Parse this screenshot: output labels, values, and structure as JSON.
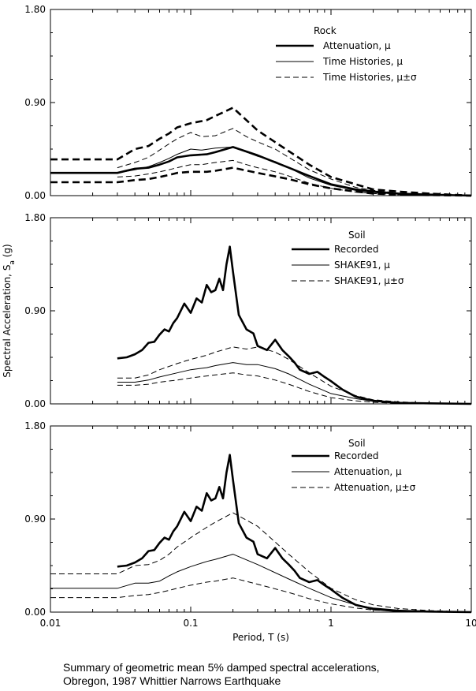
{
  "figure": {
    "ylabel": "Spectral Acceleration, S",
    "ylabel_sub": "a",
    "ylabel_unit": " (g)",
    "xlabel": "Period, T (s)",
    "caption_line1": "Summary of geometric mean 5% damped spectral accelerations,",
    "caption_line2": "Obregon, 1987 Whittier Narrows Earthquake"
  },
  "chart_data": [
    {
      "type": "line",
      "title": "Rock",
      "xscale": "log",
      "xlim": [
        0.01,
        10
      ],
      "ylim": [
        0,
        1.8
      ],
      "yticks": [
        "0.00",
        "0.90",
        "1.80"
      ],
      "xticks": [],
      "legend_position": "top-right",
      "series": [
        {
          "name": "Attenuation, μ",
          "style": "thick",
          "x": [
            0.01,
            0.03,
            0.04,
            0.05,
            0.06,
            0.07,
            0.08,
            0.1,
            0.13,
            0.15,
            0.2,
            0.3,
            0.5,
            0.7,
            1.0,
            1.5,
            2.0,
            3.0,
            5.0,
            10.0
          ],
          "y": [
            0.22,
            0.22,
            0.26,
            0.27,
            0.3,
            0.33,
            0.37,
            0.39,
            0.4,
            0.42,
            0.47,
            0.39,
            0.27,
            0.19,
            0.11,
            0.06,
            0.04,
            0.02,
            0.01,
            0.0
          ]
        },
        {
          "name": "Attenuation, μ±σ (upper)",
          "style": "thickdash",
          "x": [
            0.01,
            0.03,
            0.04,
            0.05,
            0.06,
            0.07,
            0.08,
            0.1,
            0.13,
            0.15,
            0.2,
            0.3,
            0.5,
            0.7,
            1.0,
            1.5,
            2.0,
            3.0,
            5.0,
            10.0
          ],
          "y": [
            0.35,
            0.35,
            0.45,
            0.48,
            0.55,
            0.6,
            0.66,
            0.7,
            0.73,
            0.77,
            0.85,
            0.63,
            0.43,
            0.3,
            0.18,
            0.11,
            0.06,
            0.04,
            0.02,
            0.0
          ]
        },
        {
          "name": "Attenuation, μ±σ (lower)",
          "style": "thickdash",
          "x": [
            0.01,
            0.03,
            0.04,
            0.05,
            0.06,
            0.07,
            0.08,
            0.1,
            0.13,
            0.15,
            0.2,
            0.3,
            0.5,
            0.7,
            1.0,
            1.5,
            2.0,
            3.0,
            5.0,
            10.0
          ],
          "y": [
            0.13,
            0.13,
            0.15,
            0.16,
            0.18,
            0.2,
            0.22,
            0.23,
            0.23,
            0.24,
            0.27,
            0.22,
            0.16,
            0.11,
            0.07,
            0.04,
            0.02,
            0.01,
            0.005,
            0.0
          ]
        },
        {
          "name": "Time Histories, μ",
          "style": "thin",
          "x": [
            0.03,
            0.04,
            0.05,
            0.06,
            0.07,
            0.08,
            0.1,
            0.12,
            0.15,
            0.2,
            0.25,
            0.3,
            0.4,
            0.5,
            0.7,
            1.0,
            1.5,
            2.0,
            3.0,
            5.0,
            10.0
          ],
          "y": [
            0.22,
            0.25,
            0.28,
            0.32,
            0.36,
            0.4,
            0.45,
            0.44,
            0.46,
            0.47,
            0.42,
            0.38,
            0.33,
            0.27,
            0.17,
            0.1,
            0.05,
            0.03,
            0.015,
            0.005,
            0.0
          ]
        },
        {
          "name": "Time Histories, μ±σ (upper)",
          "style": "dash",
          "x": [
            0.03,
            0.04,
            0.05,
            0.06,
            0.07,
            0.08,
            0.1,
            0.12,
            0.15,
            0.2,
            0.25,
            0.3,
            0.4,
            0.5,
            0.7,
            1.0,
            1.5,
            2.0,
            3.0,
            5.0,
            10.0
          ],
          "y": [
            0.27,
            0.32,
            0.37,
            0.44,
            0.5,
            0.55,
            0.61,
            0.57,
            0.58,
            0.65,
            0.57,
            0.52,
            0.45,
            0.37,
            0.25,
            0.16,
            0.08,
            0.05,
            0.025,
            0.008,
            0.0
          ]
        },
        {
          "name": "Time Histories, μ±σ (lower)",
          "style": "dash",
          "x": [
            0.03,
            0.04,
            0.05,
            0.06,
            0.07,
            0.08,
            0.1,
            0.12,
            0.15,
            0.2,
            0.25,
            0.3,
            0.4,
            0.5,
            0.7,
            1.0,
            1.5,
            2.0,
            3.0,
            5.0,
            10.0
          ],
          "y": [
            0.18,
            0.19,
            0.21,
            0.23,
            0.25,
            0.27,
            0.3,
            0.3,
            0.32,
            0.34,
            0.3,
            0.27,
            0.23,
            0.19,
            0.12,
            0.07,
            0.035,
            0.02,
            0.01,
            0.003,
            0.0
          ]
        }
      ],
      "legend": [
        {
          "label": "Attenuation, μ",
          "style": "thick"
        },
        {
          "label": "Time Histories, μ",
          "style": "thin"
        },
        {
          "label": "Time Histories, μ±σ",
          "style": "dash"
        }
      ]
    },
    {
      "type": "line",
      "title": "Soil",
      "xscale": "log",
      "xlim": [
        0.01,
        10
      ],
      "ylim": [
        0,
        1.8
      ],
      "yticks": [
        "0.00",
        "0.90",
        "1.80"
      ],
      "xticks": [],
      "legend_position": "top-right",
      "series": [
        {
          "name": "Recorded",
          "style": "thick",
          "x": [
            0.03,
            0.035,
            0.04,
            0.045,
            0.05,
            0.055,
            0.06,
            0.065,
            0.07,
            0.075,
            0.08,
            0.09,
            0.1,
            0.11,
            0.12,
            0.13,
            0.14,
            0.15,
            0.16,
            0.17,
            0.18,
            0.19,
            0.2,
            0.22,
            0.25,
            0.28,
            0.3,
            0.35,
            0.4,
            0.45,
            0.5,
            0.55,
            0.6,
            0.7,
            0.8,
            0.9,
            1.0,
            1.2,
            1.5,
            2.0,
            3.0,
            5.0,
            10.0
          ],
          "y": [
            0.44,
            0.45,
            0.48,
            0.52,
            0.59,
            0.6,
            0.67,
            0.72,
            0.7,
            0.78,
            0.83,
            0.97,
            0.88,
            1.02,
            0.98,
            1.15,
            1.08,
            1.1,
            1.21,
            1.1,
            1.35,
            1.52,
            1.28,
            0.86,
            0.72,
            0.68,
            0.56,
            0.52,
            0.62,
            0.52,
            0.46,
            0.4,
            0.33,
            0.29,
            0.31,
            0.26,
            0.22,
            0.14,
            0.07,
            0.03,
            0.01,
            0.005,
            0.0
          ]
        },
        {
          "name": "SHAKE91, μ",
          "style": "thin",
          "x": [
            0.03,
            0.04,
            0.05,
            0.06,
            0.08,
            0.1,
            0.13,
            0.15,
            0.2,
            0.25,
            0.3,
            0.4,
            0.5,
            0.7,
            1.0,
            1.5,
            2.0,
            3.0,
            5.0,
            10.0
          ],
          "y": [
            0.21,
            0.21,
            0.23,
            0.26,
            0.3,
            0.33,
            0.35,
            0.37,
            0.4,
            0.38,
            0.38,
            0.34,
            0.29,
            0.19,
            0.1,
            0.05,
            0.025,
            0.01,
            0.004,
            0.0
          ]
        },
        {
          "name": "SHAKE91, μ±σ (upper)",
          "style": "dash",
          "x": [
            0.03,
            0.04,
            0.05,
            0.06,
            0.08,
            0.1,
            0.13,
            0.15,
            0.2,
            0.25,
            0.3,
            0.4,
            0.5,
            0.7,
            1.0,
            1.5,
            2.0,
            3.0,
            5.0,
            10.0
          ],
          "y": [
            0.25,
            0.25,
            0.28,
            0.33,
            0.39,
            0.43,
            0.47,
            0.5,
            0.55,
            0.53,
            0.55,
            0.5,
            0.43,
            0.3,
            0.17,
            0.08,
            0.04,
            0.02,
            0.007,
            0.0
          ]
        },
        {
          "name": "SHAKE91, μ±σ (lower)",
          "style": "dash",
          "x": [
            0.03,
            0.04,
            0.05,
            0.06,
            0.08,
            0.1,
            0.13,
            0.15,
            0.2,
            0.25,
            0.3,
            0.4,
            0.5,
            0.7,
            1.0,
            1.5,
            2.0,
            3.0,
            5.0,
            10.0
          ],
          "y": [
            0.18,
            0.18,
            0.19,
            0.21,
            0.23,
            0.25,
            0.27,
            0.28,
            0.3,
            0.28,
            0.27,
            0.23,
            0.19,
            0.12,
            0.06,
            0.03,
            0.015,
            0.005,
            0.002,
            0.0
          ]
        }
      ],
      "legend": [
        {
          "label": "Recorded",
          "style": "thick"
        },
        {
          "label": "SHAKE91, μ",
          "style": "thin"
        },
        {
          "label": "SHAKE91, μ±σ",
          "style": "dash"
        }
      ]
    },
    {
      "type": "line",
      "title": "Soil",
      "xscale": "log",
      "xlim": [
        0.01,
        10
      ],
      "ylim": [
        0,
        1.8
      ],
      "yticks": [
        "0.00",
        "0.90",
        "1.80"
      ],
      "xticks": [
        "0.01",
        "0.1",
        "1",
        "10"
      ],
      "legend_position": "top-right",
      "series": [
        {
          "name": "Recorded",
          "style": "thick",
          "x": [
            0.03,
            0.035,
            0.04,
            0.045,
            0.05,
            0.055,
            0.06,
            0.065,
            0.07,
            0.075,
            0.08,
            0.09,
            0.1,
            0.11,
            0.12,
            0.13,
            0.14,
            0.15,
            0.16,
            0.17,
            0.18,
            0.19,
            0.2,
            0.22,
            0.25,
            0.28,
            0.3,
            0.35,
            0.4,
            0.45,
            0.5,
            0.55,
            0.6,
            0.7,
            0.8,
            0.9,
            1.0,
            1.2,
            1.5,
            2.0,
            3.0,
            5.0,
            10.0
          ],
          "y": [
            0.44,
            0.45,
            0.48,
            0.52,
            0.59,
            0.6,
            0.67,
            0.72,
            0.7,
            0.78,
            0.83,
            0.97,
            0.88,
            1.02,
            0.98,
            1.15,
            1.08,
            1.1,
            1.21,
            1.1,
            1.35,
            1.52,
            1.28,
            0.86,
            0.72,
            0.68,
            0.56,
            0.52,
            0.62,
            0.52,
            0.46,
            0.4,
            0.33,
            0.29,
            0.31,
            0.26,
            0.22,
            0.14,
            0.07,
            0.03,
            0.01,
            0.005,
            0.0
          ]
        },
        {
          "name": "Attenuation, μ",
          "style": "thin",
          "x": [
            0.01,
            0.03,
            0.04,
            0.05,
            0.06,
            0.07,
            0.08,
            0.1,
            0.13,
            0.15,
            0.2,
            0.3,
            0.5,
            0.7,
            1.0,
            1.5,
            2.0,
            3.0,
            5.0,
            10.0
          ],
          "y": [
            0.23,
            0.23,
            0.28,
            0.28,
            0.3,
            0.35,
            0.39,
            0.44,
            0.49,
            0.51,
            0.56,
            0.46,
            0.32,
            0.23,
            0.14,
            0.07,
            0.04,
            0.02,
            0.01,
            0.0
          ]
        },
        {
          "name": "Attenuation, μ±σ (upper)",
          "style": "dash",
          "x": [
            0.01,
            0.03,
            0.04,
            0.05,
            0.06,
            0.07,
            0.08,
            0.1,
            0.13,
            0.15,
            0.2,
            0.3,
            0.5,
            0.7,
            1.0,
            1.5,
            2.0,
            3.0,
            5.0,
            10.0
          ],
          "y": [
            0.37,
            0.37,
            0.45,
            0.46,
            0.5,
            0.56,
            0.63,
            0.72,
            0.82,
            0.87,
            0.96,
            0.83,
            0.56,
            0.39,
            0.23,
            0.12,
            0.07,
            0.035,
            0.015,
            0.0
          ]
        },
        {
          "name": "Attenuation, μ±σ (lower)",
          "style": "dash",
          "x": [
            0.01,
            0.03,
            0.04,
            0.05,
            0.06,
            0.07,
            0.08,
            0.1,
            0.13,
            0.15,
            0.2,
            0.3,
            0.5,
            0.7,
            1.0,
            1.5,
            2.0,
            3.0,
            5.0,
            10.0
          ],
          "y": [
            0.14,
            0.14,
            0.16,
            0.17,
            0.19,
            0.21,
            0.23,
            0.26,
            0.29,
            0.3,
            0.33,
            0.27,
            0.19,
            0.13,
            0.08,
            0.04,
            0.02,
            0.01,
            0.005,
            0.0
          ]
        }
      ],
      "legend": [
        {
          "label": "Recorded",
          "style": "thick"
        },
        {
          "label": "Attenuation, μ",
          "style": "thin"
        },
        {
          "label": "Attenuation, μ±σ",
          "style": "dash"
        }
      ]
    }
  ]
}
